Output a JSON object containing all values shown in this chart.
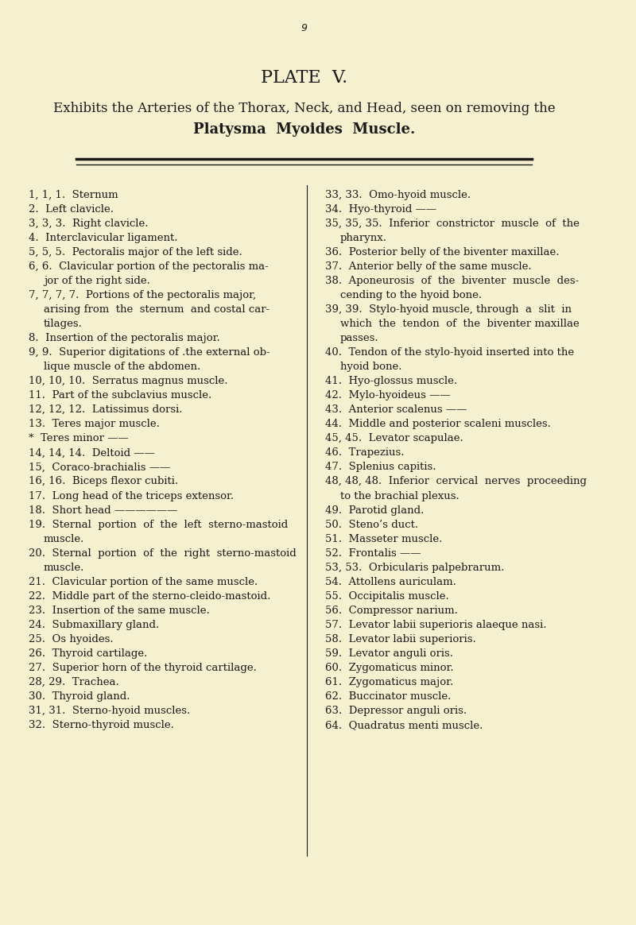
{
  "background_color": "#f5f0d0",
  "page_number": "9",
  "plate_title": "PLATE  V.",
  "subtitle_line1": "Exhibits the Arteries of the Thorax, Neck, and Head, seen on removing the",
  "subtitle_line2": "Platysma  Myoides  Muscle.",
  "left_column": [
    "1, 1, 1.  Sternum",
    "2.  Left clavicle.",
    "3, 3, 3.  Right clavicle.",
    "4.  Interclavicular ligament.",
    "5, 5, 5.  Pectoralis major of the left side.",
    "6, 6.  Clavicular portion of the pectoralis ma-\n    jor of the right side.",
    "7, 7, 7, 7.  Portions of the pectoralis major,\n    arising from  the  sternum  and costal car-\n    tilages.",
    "8.  Insertion of the pectoralis major.",
    "9, 9.  Superior digitations of .the external ob-\n    lique muscle of the abdomen.",
    "10, 10, 10.  Serratus magnus muscle.",
    "11.  Part of the subclavius muscle.",
    "12, 12, 12.  Latissimus dorsi.",
    "13.  Teres major muscle.",
    "*  Teres minor ——",
    "14, 14, 14.  Deltoid ——",
    "15,  Coraco-brachialis ——",
    "16, 16.  Biceps flexor cubiti.",
    "17.  Long head of the triceps extensor.",
    "18.  Short head ——————",
    "19.  Sternal  portion  of  the  left  sterno-mastoid\n    muscle.",
    "20.  Sternal  portion  of  the  right  sterno-mastoid\n    muscle.",
    "21.  Clavicular portion of the same muscle.",
    "22.  Middle part of the sterno-cleido-mastoid.",
    "23.  Insertion of the same muscle.",
    "24.  Submaxillary gland.",
    "25.  Os hyoides.",
    "26.  Thyroid cartilage.",
    "27.  Superior horn of the thyroid cartilage.",
    "28, 29.  Trachea.",
    "30.  Thyroid gland.",
    "31, 31.  Sterno-hyoid muscles.",
    "32.  Sterno-thyroid muscle."
  ],
  "right_column": [
    "33, 33.  Omo-hyoid muscle.",
    "34.  Hyo-thyroid ——",
    "35, 35, 35.  Inferior  constrictor  muscle  of  the\n    pharynx.",
    "36.  Posterior belly of the biventer maxillae.",
    "37.  Anterior belly of the same muscle.",
    "38.  Aponeurosis  of  the  biventer  muscle  des-\n    cending to the hyoid bone.",
    "39, 39.  Stylo-hyoid muscle, through  a  slit  in\n    which  the  tendon  of  the  biventer maxillae\n    passes.",
    "40.  Tendon of the stylo-hyoid inserted into the\n    hyoid bone.",
    "41.  Hyo-glossus muscle.",
    "42.  Mylo-hyoideus ——",
    "43.  Anterior scalenus ——",
    "44.  Middle and posterior scaleni muscles.",
    "45, 45.  Levator scapulae.",
    "46.  Trapezius.",
    "47.  Splenius capitis.",
    "48, 48, 48.  Inferior  cervical  nerves  proceeding\n    to the brachial plexus.",
    "49.  Parotid gland.",
    "50.  Steno’s duct.",
    "51.  Masseter muscle.",
    "52.  Frontalis ——",
    "53, 53.  Orbicularis palpebrarum.",
    "54.  Attollens auriculam.",
    "55.  Occipitalis muscle.",
    "56.  Compressor narium.",
    "57.  Levator labii superioris alaeque nasi.",
    "58.  Levator labii superioris.",
    "59.  Levator anguli oris.",
    "60.  Zygomaticus minor.",
    "61.  Zygomaticus major.",
    "62.  Buccinator muscle.",
    "63.  Depressor anguli oris.",
    "64.  Quadratus menti muscle."
  ],
  "text_color": "#1a1a1a",
  "divider_color": "#1a1a1a",
  "font_size_body": 9.5,
  "font_size_title": 16,
  "font_size_subtitle": 12
}
